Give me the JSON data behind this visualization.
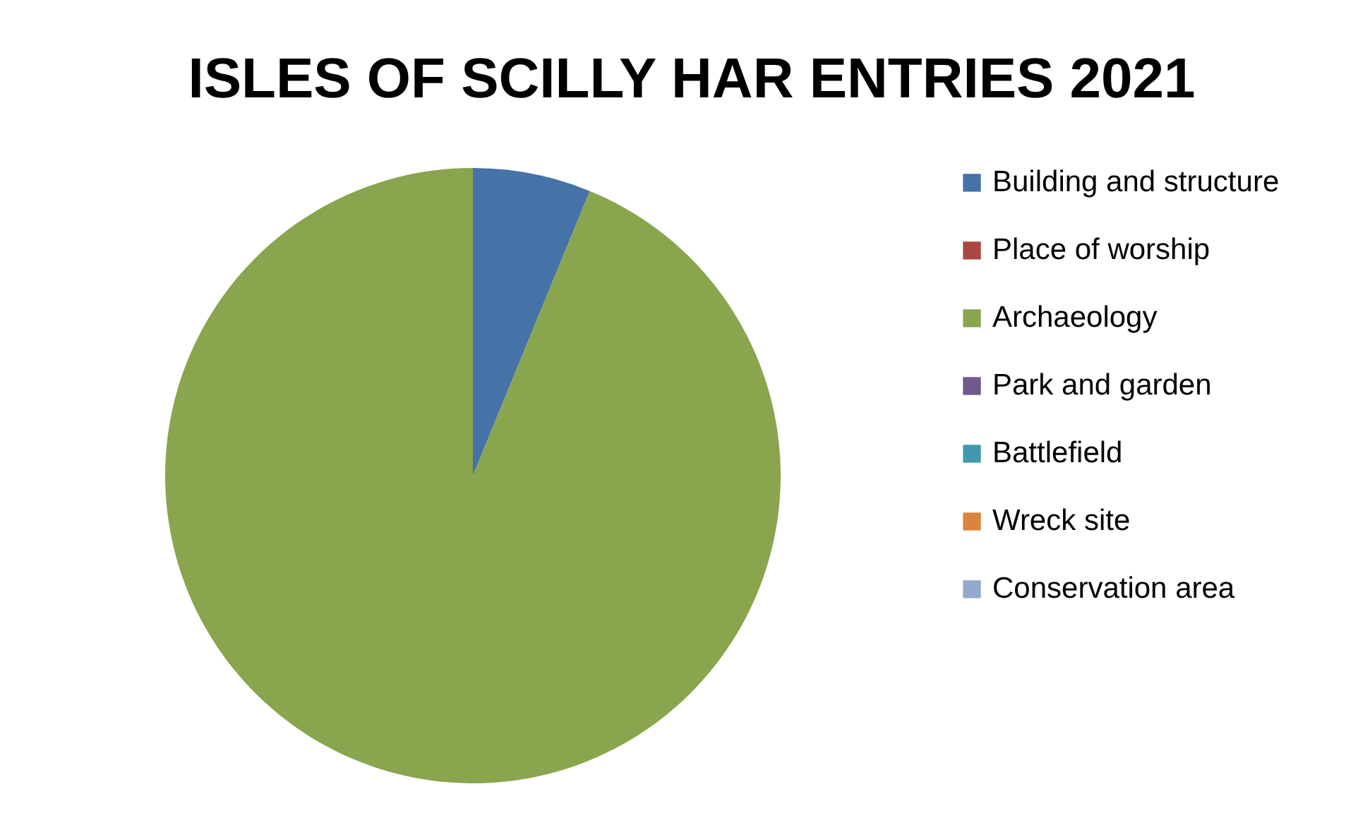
{
  "chart_data": {
    "type": "pie",
    "title": "ISLES OF SCILLY HAR ENTRIES 2021",
    "categories": [
      "Building and structure",
      "Place of worship",
      "Archaeology",
      "Park and garden",
      "Battlefield",
      "Wreck site",
      "Conservation area"
    ],
    "values": [
      6.2,
      0,
      93.8,
      0,
      0,
      0,
      0
    ],
    "colors": [
      "#4572a7",
      "#aa4643",
      "#89a54e",
      "#71588f",
      "#4198af",
      "#db843d",
      "#93a9cf"
    ],
    "legend": "right"
  }
}
